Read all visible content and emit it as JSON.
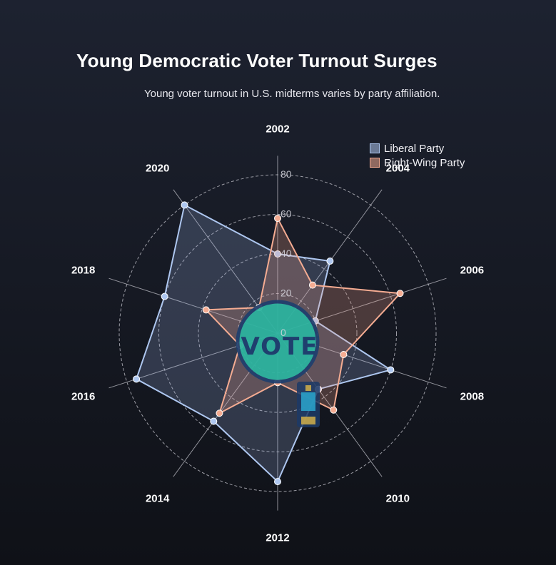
{
  "title": "Young Democratic Voter Turnout Surges",
  "subtitle": "Young voter turnout in U.S. midterms varies by party affiliation.",
  "legend": {
    "items": [
      {
        "label": "Liberal Party",
        "color": "#aec7f0"
      },
      {
        "label": "Right-Wing Party",
        "color": "#f0a88e"
      }
    ],
    "position": "top-right"
  },
  "colors": {
    "liberal": "#aec7f0",
    "right_wing": "#f5ac92",
    "badge_fill": "#2ab5a0",
    "badge_ring": "#1f3f6e"
  },
  "badge": {
    "text": "VOTE"
  },
  "chart_data": {
    "type": "radar",
    "title": "Young Democratic Voter Turnout Surges",
    "subtitle": "Young voter turnout in U.S. midterms varies by party affiliation.",
    "categories": [
      "2002",
      "2004",
      "2006",
      "2008",
      "2010",
      "2012",
      "2014",
      "2016",
      "2018",
      "2020"
    ],
    "radial_ticks": [
      0,
      20,
      40,
      60,
      80
    ],
    "rlim": [
      0,
      80
    ],
    "grid": true,
    "series": [
      {
        "name": "Liberal Party",
        "values": [
          40,
          45,
          20,
          60,
          35,
          75,
          55,
          75,
          60,
          80
        ]
      },
      {
        "name": "Right-Wing Party",
        "values": [
          58,
          30,
          65,
          35,
          48,
          25,
          50,
          20,
          38,
          16
        ]
      }
    ]
  }
}
